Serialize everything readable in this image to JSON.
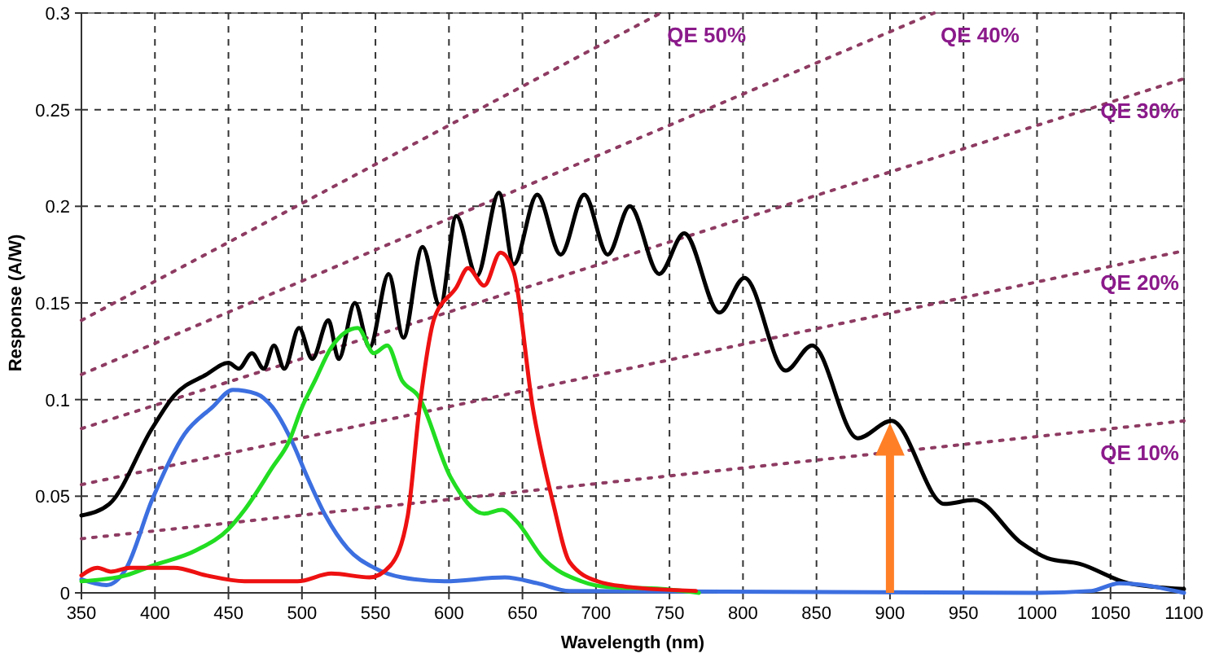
{
  "chart_data": {
    "type": "line",
    "xlabel": "Wavelength (nm)",
    "ylabel": "Response (A/W)",
    "xlim": [
      350,
      1100
    ],
    "xticks": [
      350,
      400,
      450,
      500,
      550,
      600,
      650,
      700,
      750,
      800,
      850,
      900,
      950,
      1000,
      1050,
      1100
    ],
    "ylim": [
      0,
      0.3
    ],
    "yticks": [
      0,
      0.05,
      0.1,
      0.15,
      0.2,
      0.25,
      0.3
    ],
    "grid": true,
    "marker": "none",
    "series": [
      {
        "name": "QE 10%",
        "color": "#8e3b62",
        "line_style": "dotted",
        "x": [
          350,
          1100
        ],
        "values": [
          0.028,
          0.089
        ]
      },
      {
        "name": "QE 20%",
        "color": "#8e3b62",
        "line_style": "dotted",
        "x": [
          350,
          1100
        ],
        "values": [
          0.056,
          0.177
        ]
      },
      {
        "name": "QE 30%",
        "color": "#8e3b62",
        "line_style": "dotted",
        "x": [
          350,
          1100
        ],
        "values": [
          0.085,
          0.266
        ]
      },
      {
        "name": "QE 40%",
        "color": "#8e3b62",
        "line_style": "dotted",
        "x": [
          350,
          930
        ],
        "values": [
          0.113,
          0.3
        ]
      },
      {
        "name": "QE 50%",
        "color": "#8e3b62",
        "line_style": "dotted",
        "x": [
          350,
          744
        ],
        "values": [
          0.141,
          0.3
        ]
      },
      {
        "color": "#000000",
        "line_style": "solid",
        "x": [
          350,
          369,
          398,
          413,
          435,
          450,
          457,
          466,
          474,
          481,
          488,
          498,
          507,
          518,
          525,
          536,
          546,
          559,
          569,
          582,
          594,
          605,
          619,
          634,
          644,
          660,
          676,
          692,
          708,
          723,
          743,
          760,
          784,
          801,
          829,
          847,
          878,
          901,
          937,
          957,
          989,
          1007,
          1029,
          1062,
          1100
        ],
        "values": [
          0.04,
          0.046,
          0.085,
          0.102,
          0.113,
          0.119,
          0.116,
          0.124,
          0.116,
          0.128,
          0.116,
          0.137,
          0.121,
          0.141,
          0.121,
          0.15,
          0.127,
          0.165,
          0.132,
          0.179,
          0.148,
          0.195,
          0.164,
          0.207,
          0.17,
          0.206,
          0.175,
          0.206,
          0.175,
          0.2,
          0.165,
          0.186,
          0.145,
          0.163,
          0.115,
          0.128,
          0.08,
          0.089,
          0.046,
          0.048,
          0.026,
          0.018,
          0.015,
          0.005,
          0.002
        ]
      },
      {
        "color": "#3c6fe0",
        "line_style": "solid",
        "x": [
          350,
          367,
          380,
          398,
          420,
          439,
          453,
          469,
          480,
          494,
          503,
          516,
          531,
          549,
          568,
          597,
          638,
          660,
          682,
          1000,
          1037,
          1056,
          1100
        ],
        "values": [
          0.007,
          0.004,
          0.012,
          0.048,
          0.082,
          0.096,
          0.105,
          0.103,
          0.096,
          0.077,
          0.061,
          0.04,
          0.023,
          0.013,
          0.008,
          0.006,
          0.008,
          0.005,
          0.001,
          0,
          0.001,
          0.005,
          0
        ]
      },
      {
        "color": "#22dd22",
        "line_style": "solid",
        "x": [
          350,
          380,
          398,
          428,
          450,
          461,
          480,
          491,
          500,
          509,
          520,
          538,
          549,
          558,
          568,
          579,
          601,
          624,
          636,
          646,
          664,
          690,
          708,
          745,
          770
        ],
        "values": [
          0.006,
          0.009,
          0.014,
          0.022,
          0.033,
          0.043,
          0.065,
          0.078,
          0.096,
          0.11,
          0.127,
          0.137,
          0.124,
          0.128,
          0.11,
          0.102,
          0.06,
          0.041,
          0.043,
          0.037,
          0.018,
          0.006,
          0.003,
          0.002,
          0
        ]
      },
      {
        "color": "#ee1111",
        "line_style": "solid",
        "x": [
          350,
          361,
          370,
          383,
          413,
          435,
          461,
          497,
          520,
          546,
          560,
          572,
          580,
          590,
          605,
          613,
          624,
          635,
          644,
          657,
          671,
          682,
          701,
          723,
          768
        ],
        "values": [
          0.009,
          0.013,
          0.011,
          0.013,
          0.013,
          0.009,
          0.006,
          0.006,
          0.01,
          0.008,
          0.014,
          0.04,
          0.096,
          0.142,
          0.158,
          0.168,
          0.159,
          0.176,
          0.166,
          0.096,
          0.046,
          0.016,
          0.006,
          0.003,
          0.001
        ]
      }
    ]
  }
}
